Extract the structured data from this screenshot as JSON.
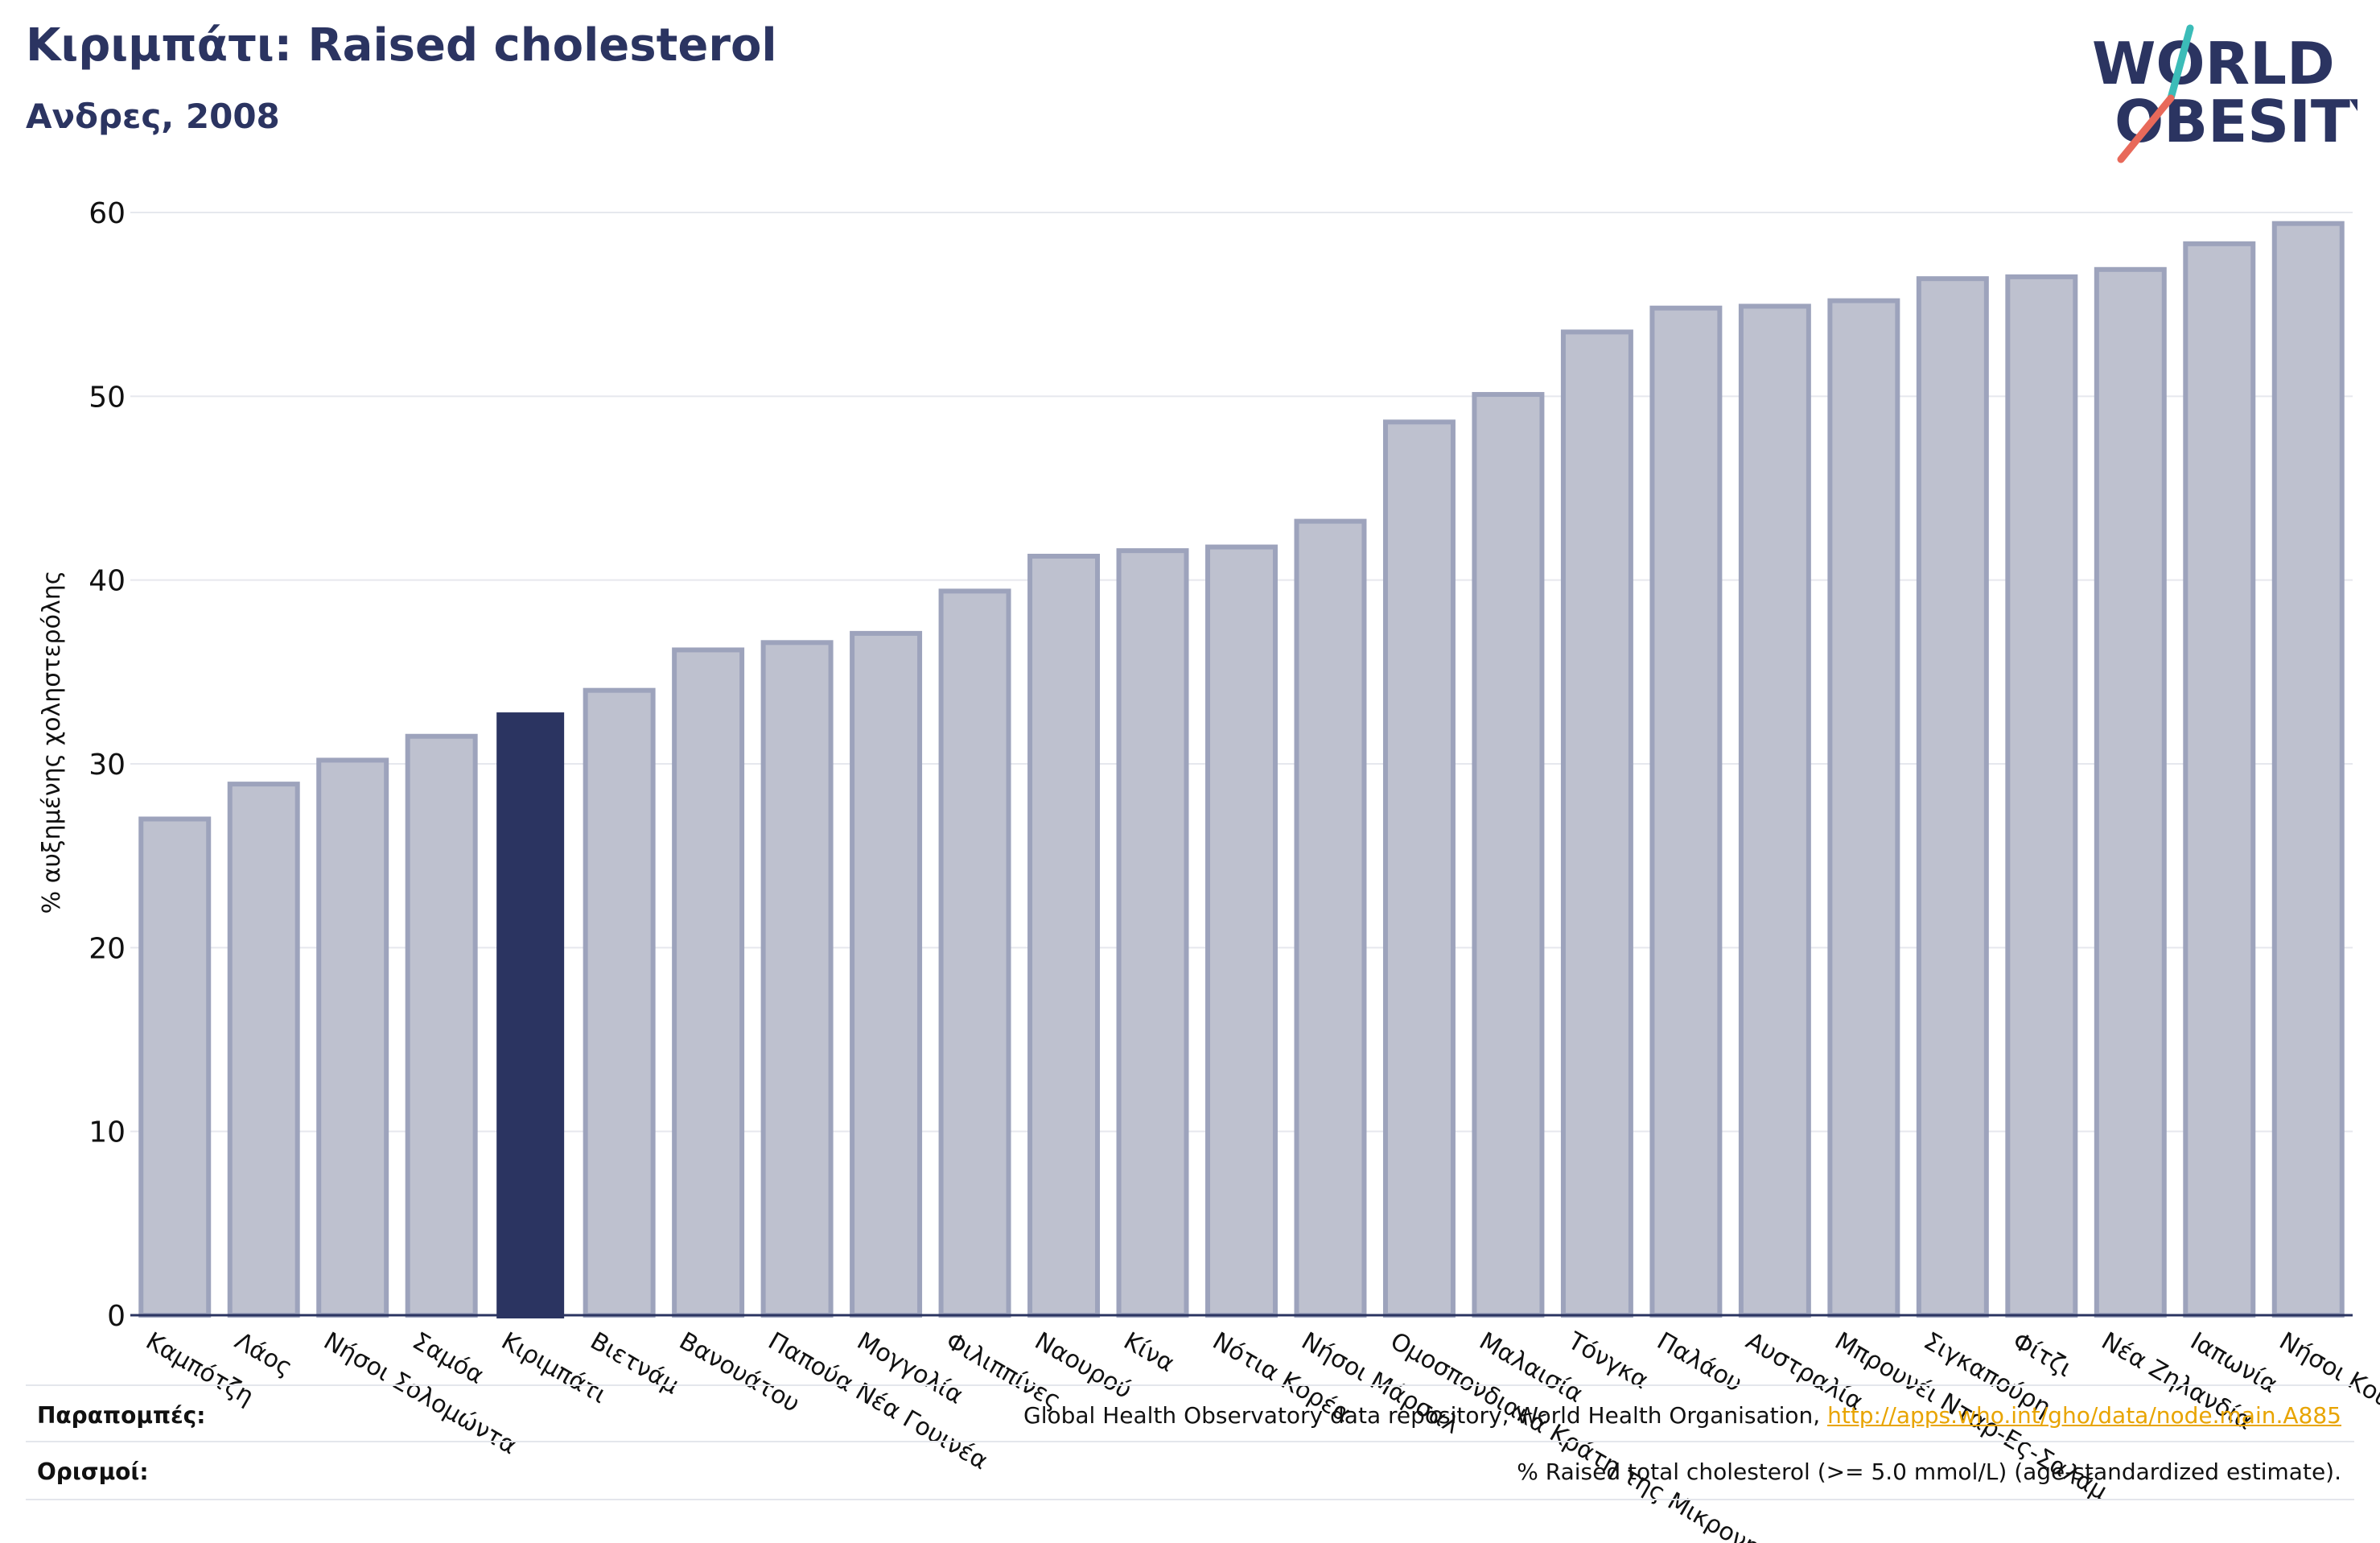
{
  "header": {
    "title": "Κιριμπάτι: Raised cholesterol",
    "subtitle": "Ανδρες, 2008"
  },
  "logo": {
    "line1": "WORLD",
    "line2": "OBESITY",
    "icon": "world-obesity-logo"
  },
  "colors": {
    "highlight_bar": "#2b3461",
    "other_bars": "#bec1cf",
    "other_bar_border": "#9da3bc",
    "title": "#2b3461",
    "link": "#e8a400",
    "logo_text": "#2b3461",
    "logo_slash_top": "#3bbcb8",
    "logo_slash_bottom": "#e8695a"
  },
  "footer": {
    "references_label": "Παραπομπές:",
    "references_text": "Global Health Observatory data repository, World Health Organisation, ",
    "references_link": "http://apps.who.int/gho/data/node.main.A885",
    "definitions_label": "Ορισμοί:",
    "definitions_text": "% Raised total cholesterol (>= 5.0 mmol/L) (age-standardized estimate)."
  },
  "chart_data": {
    "type": "bar",
    "title": "Κιριμπάτι: Raised cholesterol",
    "subtitle": "Ανδρες, 2008",
    "xlabel": "",
    "ylabel": "% αυξημένης χοληστερόλης",
    "ylim": [
      0,
      60
    ],
    "yticks": [
      0,
      10,
      20,
      30,
      40,
      50,
      60
    ],
    "grid": true,
    "highlight": "Κιριμπάτι",
    "categories": [
      "Καμπότζη",
      "Λάος",
      "Νήσοι Σολομώντα",
      "Σαμόα",
      "Κιριμπάτι",
      "Βιετνάμ",
      "Βανουάτου",
      "Παπούα Νέα Γουινέα",
      "Μογγολία",
      "Φιλιππίνες",
      "Ναουρού",
      "Κίνα",
      "Νότια Κορέα",
      "Νήσοι Μάρσαλ",
      "Ομοσπονδιακά Κράτη της Μικρονησίας",
      "Μαλαισία",
      "Τόνγκα",
      "Παλάου",
      "Αυστραλία",
      "Μπρουνέι Νταρ-Ες-Σαλάμ",
      "Σιγκαπούρη",
      "Φίτζι",
      "Νέα Ζηλανδία",
      "Ιαπωνία",
      "Νήσοι Κουκ"
    ],
    "values": [
      27.0,
      28.9,
      30.2,
      31.5,
      32.8,
      34.0,
      36.2,
      36.6,
      37.1,
      39.4,
      41.3,
      41.6,
      41.8,
      43.2,
      48.6,
      50.1,
      53.5,
      54.8,
      54.9,
      55.2,
      56.4,
      56.5,
      56.9,
      58.3,
      59.4
    ]
  }
}
